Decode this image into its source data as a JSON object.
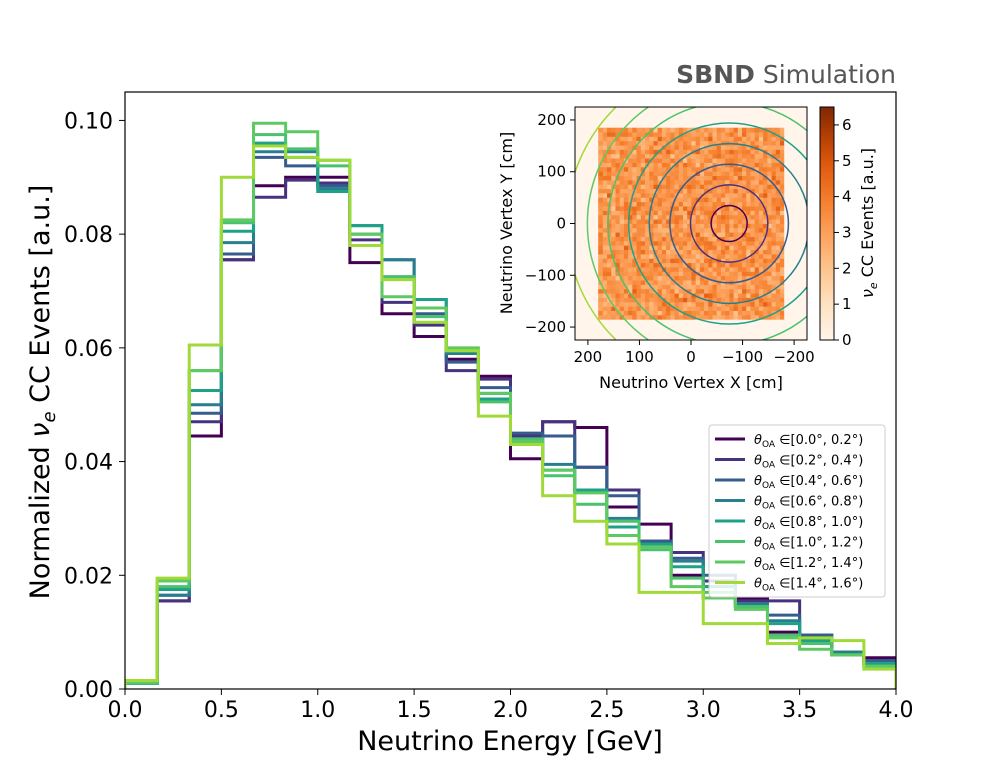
{
  "sim_label": {
    "bold": "SBND",
    "normal": " Simulation"
  },
  "chart_data": [
    {
      "type": "line",
      "subtype": "step-histogram",
      "xlabel": "Neutrino Energy [GeV]",
      "ylabel_prefix": "Normalized ",
      "ylabel_nu": "ν",
      "ylabel_sub": "e",
      "ylabel_suffix": " CC Events [a.u.]",
      "xlim": [
        0.0,
        4.0
      ],
      "ylim": [
        0.0,
        0.105
      ],
      "xticks": [
        0.0,
        0.5,
        1.0,
        1.5,
        2.0,
        2.5,
        3.0,
        3.5,
        4.0
      ],
      "xtick_labels": [
        "0.0",
        "0.5",
        "1.0",
        "1.5",
        "2.0",
        "2.5",
        "3.0",
        "3.5",
        "4.0"
      ],
      "yticks": [
        0.0,
        0.02,
        0.04,
        0.06,
        0.08,
        0.1
      ],
      "ytick_labels": [
        "0.00",
        "0.02",
        "0.04",
        "0.06",
        "0.08",
        "0.10"
      ],
      "bin_edges": [
        0,
        0.1667,
        0.3333,
        0.5,
        0.6667,
        0.8333,
        1.0,
        1.1667,
        1.3333,
        1.5,
        1.6667,
        1.8333,
        2.0,
        2.1667,
        2.3333,
        2.5,
        2.6667,
        2.8333,
        3.0,
        3.1667,
        3.3333,
        3.5,
        3.6667,
        3.8333,
        4.0
      ],
      "legend_position": "center-right",
      "series": [
        {
          "name": "[0.0°, 0.2°)",
          "color": "#440154",
          "values": [
            0.001,
            0.0155,
            0.0445,
            0.0755,
            0.0885,
            0.09,
            0.09,
            0.075,
            0.066,
            0.062,
            0.058,
            0.055,
            0.0405,
            0.047,
            0.046,
            0.032,
            0.029,
            0.02,
            0.016,
            0.016,
            0.01,
            0.008,
            0.0065,
            0.0055
          ]
        },
        {
          "name": "[0.2°, 0.4°)",
          "color": "#46327e",
          "values": [
            0.001,
            0.0155,
            0.047,
            0.0755,
            0.0865,
            0.0895,
            0.089,
            0.079,
            0.068,
            0.064,
            0.056,
            0.0545,
            0.0445,
            0.047,
            0.039,
            0.035,
            0.026,
            0.024,
            0.019,
            0.0155,
            0.0155,
            0.0095,
            0.0065,
            0.005
          ]
        },
        {
          "name": "[0.4°, 0.6°)",
          "color": "#365c8d",
          "values": [
            0.001,
            0.0165,
            0.0485,
            0.0765,
            0.0935,
            0.092,
            0.0885,
            0.08,
            0.0755,
            0.066,
            0.0575,
            0.053,
            0.045,
            0.0445,
            0.039,
            0.034,
            0.026,
            0.023,
            0.02,
            0.015,
            0.013,
            0.0095,
            0.0065,
            0.005
          ]
        },
        {
          "name": "[0.6°, 0.8°)",
          "color": "#277f8e",
          "values": [
            0.001,
            0.0165,
            0.05,
            0.0785,
            0.0945,
            0.0945,
            0.088,
            0.0815,
            0.0755,
            0.0685,
            0.059,
            0.052,
            0.044,
            0.0395,
            0.035,
            0.03,
            0.0255,
            0.0225,
            0.018,
            0.015,
            0.012,
            0.009,
            0.0065,
            0.0045
          ]
        },
        {
          "name": "[0.8°, 1.0°)",
          "color": "#1fa187",
          "values": [
            0.001,
            0.0175,
            0.0525,
            0.0805,
            0.096,
            0.0935,
            0.0875,
            0.0815,
            0.0725,
            0.0685,
            0.0595,
            0.051,
            0.0435,
            0.0385,
            0.035,
            0.0285,
            0.0255,
            0.0215,
            0.018,
            0.0145,
            0.0115,
            0.0085,
            0.006,
            0.0045
          ]
        },
        {
          "name": "[1.0°, 1.2°)",
          "color": "#4ac16d",
          "values": [
            0.001,
            0.018,
            0.056,
            0.082,
            0.0975,
            0.095,
            0.092,
            0.08,
            0.0725,
            0.0655,
            0.0595,
            0.0505,
            0.044,
            0.0375,
            0.0325,
            0.0295,
            0.0245,
            0.0195,
            0.017,
            0.0145,
            0.0095,
            0.008,
            0.006,
            0.004
          ]
        },
        {
          "name": "[1.2°, 1.4°)",
          "color": "#5ec962",
          "values": [
            0.0012,
            0.019,
            0.056,
            0.0825,
            0.0995,
            0.098,
            0.093,
            0.08,
            0.069,
            0.067,
            0.06,
            0.052,
            0.0435,
            0.0385,
            0.0345,
            0.027,
            0.025,
            0.018,
            0.016,
            0.014,
            0.009,
            0.007,
            0.006,
            0.004
          ]
        },
        {
          "name": "[1.4°, 1.6°)",
          "color": "#a0da39",
          "values": [
            0.0015,
            0.0195,
            0.0605,
            0.09,
            0.0955,
            0.0935,
            0.093,
            0.078,
            0.072,
            0.0645,
            0.0595,
            0.048,
            0.043,
            0.034,
            0.0295,
            0.0255,
            0.017,
            0.017,
            0.0115,
            0.0115,
            0.008,
            0.009,
            0.0085,
            0.0035
          ]
        }
      ]
    },
    {
      "type": "heatmap",
      "xlabel": "Neutrino Vertex X [cm]",
      "ylabel": "Neutrino Vertex Y [cm]",
      "xlim": [
        225,
        -225
      ],
      "ylim": [
        -225,
        225
      ],
      "xticks": [
        200,
        100,
        0,
        -100,
        -200
      ],
      "xtick_labels": [
        "200",
        "100",
        "0",
        "−100",
        "−200"
      ],
      "yticks": [
        200,
        100,
        0,
        -100,
        -200
      ],
      "ytick_labels": [
        "200",
        "100",
        "0",
        "−100",
        "−200"
      ],
      "detector_x_range": [
        -180,
        180
      ],
      "detector_y_range": [
        -185,
        185
      ],
      "grid_bins": 44,
      "mean_value": 3.3,
      "beam_center": [
        -74,
        0
      ],
      "ring_radii_cm": [
        35,
        75,
        115,
        155,
        195,
        235,
        275,
        315
      ],
      "colorbar": {
        "label_nu": "ν",
        "label_sub": "e",
        "label_rest": " CC Events [a.u.]",
        "range": [
          0,
          6.5
        ],
        "ticks": [
          0,
          1,
          2,
          3,
          4,
          5,
          6
        ],
        "tick_labels": [
          "0",
          "1",
          "2",
          "3",
          "4",
          "5",
          "6"
        ]
      }
    }
  ]
}
